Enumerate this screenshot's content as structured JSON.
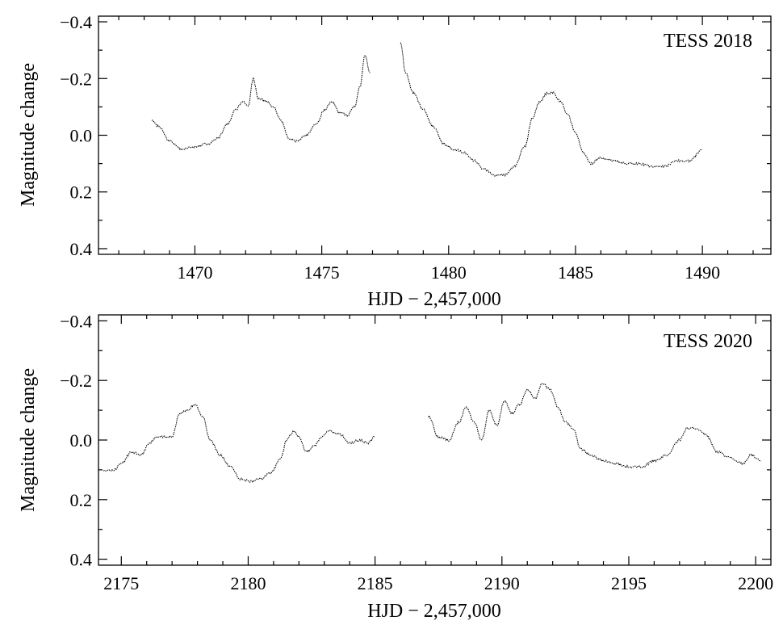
{
  "chart_data": [
    {
      "type": "scatter",
      "panel_label": "TESS 2018",
      "xlabel": "HJD − 2,457,000",
      "ylabel": "Magnitude change",
      "xlim": [
        1466.2,
        1492.7
      ],
      "ylim": [
        0.42,
        -0.42
      ],
      "y_inverted": true,
      "xticks": [
        1470,
        1475,
        1480,
        1485,
        1490
      ],
      "xtick_labels": [
        "1470",
        "1475",
        "1480",
        "1485",
        "1490"
      ],
      "yticks": [
        -0.4,
        -0.2,
        0.0,
        0.2,
        0.4
      ],
      "ytick_labels": [
        "−0.4",
        "−0.2",
        "0.0",
        "0.2",
        "0.4"
      ],
      "series": [
        {
          "x": [
            1468.3,
            1468.6,
            1469.0,
            1469.5,
            1470.0,
            1470.5,
            1470.9,
            1471.3,
            1471.6,
            1471.9,
            1472.1,
            1472.3,
            1472.5,
            1472.8,
            1473.1,
            1473.4,
            1473.7,
            1474.0,
            1474.4,
            1474.8,
            1475.1,
            1475.4,
            1475.7,
            1476.0,
            1476.3,
            1476.5,
            1476.7,
            1476.9
          ],
          "y": [
            -0.05,
            -0.03,
            0.02,
            0.05,
            0.04,
            0.03,
            0.01,
            -0.04,
            -0.09,
            -0.12,
            -0.1,
            -0.2,
            -0.13,
            -0.12,
            -0.1,
            -0.05,
            0.01,
            0.02,
            0.0,
            -0.04,
            -0.09,
            -0.12,
            -0.08,
            -0.07,
            -0.1,
            -0.17,
            -0.28,
            -0.22
          ]
        },
        {
          "x": [
            1478.1,
            1478.3,
            1478.6,
            1479.0,
            1479.4,
            1479.8,
            1480.2,
            1480.6,
            1481.0,
            1481.4,
            1481.8,
            1482.2,
            1482.6,
            1483.0,
            1483.3,
            1483.6,
            1483.9,
            1484.1,
            1484.4,
            1484.7,
            1485.0,
            1485.3,
            1485.6,
            1486.0,
            1486.5,
            1487.0,
            1487.5,
            1488.0,
            1488.5,
            1489.0,
            1489.5,
            1490.0
          ],
          "y": [
            -0.33,
            -0.22,
            -0.15,
            -0.09,
            -0.03,
            0.03,
            0.05,
            0.06,
            0.09,
            0.12,
            0.14,
            0.14,
            0.11,
            0.04,
            -0.06,
            -0.12,
            -0.15,
            -0.15,
            -0.12,
            -0.07,
            -0.01,
            0.06,
            0.1,
            0.08,
            0.09,
            0.1,
            0.1,
            0.11,
            0.11,
            0.09,
            0.09,
            0.05
          ]
        }
      ]
    },
    {
      "type": "scatter",
      "panel_label": "TESS 2020",
      "xlabel": "HJD − 2,457,000",
      "ylabel": "Magnitude change",
      "xlim": [
        2174.1,
        2200.6
      ],
      "ylim": [
        0.42,
        -0.42
      ],
      "y_inverted": true,
      "xticks": [
        2175,
        2180,
        2185,
        2190,
        2195,
        2200
      ],
      "xtick_labels": [
        "2175",
        "2180",
        "2185",
        "2190",
        "2195",
        "2200"
      ],
      "yticks": [
        -0.4,
        -0.2,
        0.0,
        0.2,
        0.4
      ],
      "ytick_labels": [
        "−0.4",
        "−0.2",
        "0.0",
        "0.2",
        "0.4"
      ],
      "series": [
        {
          "x": [
            2174.3,
            2174.7,
            2175.0,
            2175.4,
            2175.8,
            2176.1,
            2176.4,
            2176.7,
            2177.0,
            2177.3,
            2177.6,
            2177.9,
            2178.2,
            2178.5,
            2178.9,
            2179.3,
            2179.7,
            2180.1,
            2180.5,
            2180.9,
            2181.3,
            2181.5,
            2181.8,
            2182.0,
            2182.3,
            2182.6,
            2182.9,
            2183.2,
            2183.6,
            2184.0,
            2184.4,
            2184.7,
            2185.0
          ],
          "y": [
            0.1,
            0.1,
            0.08,
            0.04,
            0.05,
            0.01,
            -0.01,
            -0.01,
            -0.01,
            -0.09,
            -0.1,
            -0.12,
            -0.08,
            0.0,
            0.05,
            0.09,
            0.13,
            0.14,
            0.13,
            0.11,
            0.06,
            0.0,
            -0.03,
            -0.01,
            0.04,
            0.02,
            -0.01,
            -0.03,
            -0.02,
            0.01,
            0.0,
            0.01,
            -0.01
          ]
        },
        {
          "x": [
            2187.1,
            2187.5,
            2187.9,
            2188.3,
            2188.6,
            2188.9,
            2189.2,
            2189.5,
            2189.8,
            2190.1,
            2190.4,
            2190.7,
            2191.0,
            2191.3,
            2191.6,
            2191.9,
            2192.2,
            2192.5,
            2192.8,
            2193.1,
            2193.5,
            2194.0,
            2194.5,
            2195.0,
            2195.5,
            2196.0,
            2196.5,
            2197.0,
            2197.3,
            2197.6,
            2198.0,
            2198.5,
            2199.0,
            2199.5,
            2199.8,
            2200.2
          ],
          "y": [
            -0.08,
            -0.01,
            0.0,
            -0.06,
            -0.11,
            -0.06,
            0.0,
            -0.1,
            -0.05,
            -0.13,
            -0.09,
            -0.12,
            -0.17,
            -0.14,
            -0.19,
            -0.17,
            -0.11,
            -0.06,
            -0.04,
            0.03,
            0.05,
            0.07,
            0.08,
            0.09,
            0.09,
            0.07,
            0.05,
            0.0,
            -0.04,
            -0.04,
            -0.02,
            0.04,
            0.06,
            0.08,
            0.05,
            0.07
          ]
        }
      ]
    }
  ]
}
